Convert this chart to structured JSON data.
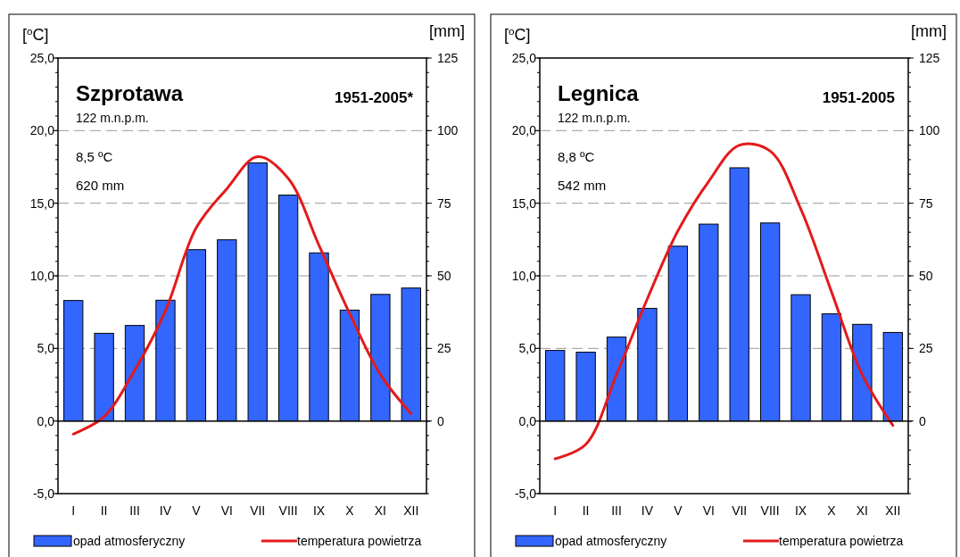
{
  "chart_data": [
    {
      "type": "bar",
      "title": "Szprotawa",
      "annotations": [
        "1951-2005*",
        "122 m.n.p.m.",
        "8,5 ºC",
        "620 mm"
      ],
      "ylabel": "[$^{o}$C]",
      "y2label": "[mm]",
      "categories": [
        "I",
        "II",
        "III",
        "IV",
        "V",
        "VI",
        "VII",
        "VIII",
        "IX",
        "X",
        "XI",
        "XII"
      ],
      "series": [
        {
          "name": "opad atmosferyczny",
          "axis": "y2",
          "color": "#3366ff",
          "values": [
            41.5,
            30.2,
            32.9,
            41.6,
            59.0,
            62.4,
            88.9,
            77.8,
            57.9,
            38.2,
            43.6,
            45.8
          ]
        },
        {
          "name": "temperatura powietrza",
          "type": "line",
          "axis": "y",
          "color": "#e31a1c",
          "values": [
            -0.9,
            0.3,
            3.5,
            7.6,
            13.3,
            16.0,
            18.2,
            16.7,
            12.1,
            7.4,
            3.2,
            0.5
          ]
        }
      ],
      "ylim": [
        -5,
        25
      ],
      "yticks": [
        {
          "value": -5,
          "label": "-5,0"
        },
        {
          "value": 0,
          "label": "0,0"
        },
        {
          "value": 5,
          "label": "5,0"
        },
        {
          "value": 10,
          "label": "10,0"
        },
        {
          "value": 15,
          "label": "15,0"
        },
        {
          "value": 20,
          "label": "20,0"
        },
        {
          "value": 25,
          "label": "25,0"
        }
      ],
      "y2lim": [
        -25,
        125
      ],
      "y2ticks": [
        0,
        25,
        50,
        75,
        100,
        125
      ],
      "grid": "y",
      "legend": "bottom",
      "marker": "none",
      "line_style": "solid"
    },
    {
      "type": "bar",
      "title": "Legnica",
      "annotations": [
        "1951-2005",
        "122 m.n.p.m.",
        "8,8 ºC",
        "542 mm"
      ],
      "ylabel": "[$^{o}$C]",
      "y2label": "[mm]",
      "categories": [
        "I",
        "II",
        "III",
        "IV",
        "V",
        "VI",
        "VII",
        "VIII",
        "IX",
        "X",
        "XI",
        "XII"
      ],
      "series": [
        {
          "name": "opad atmosferyczny",
          "axis": "y2",
          "color": "#3366ff",
          "values": [
            24.3,
            23.7,
            28.9,
            38.8,
            60.2,
            67.8,
            87.2,
            68.2,
            43.5,
            36.9,
            33.3,
            30.5
          ]
        },
        {
          "name": "temperatura powietrza",
          "type": "line",
          "axis": "y",
          "color": "#e31a1c",
          "values": [
            -2.6,
            -1.6,
            3.2,
            8.4,
            13.1,
            16.5,
            19.0,
            18.6,
            14.6,
            8.9,
            3.2,
            -0.3
          ]
        }
      ],
      "ylim": [
        -5,
        25
      ],
      "yticks": [
        {
          "value": -5,
          "label": "-5,0"
        },
        {
          "value": 0,
          "label": "0,0"
        },
        {
          "value": 5,
          "label": "5,0"
        },
        {
          "value": 10,
          "label": "10,0"
        },
        {
          "value": 15,
          "label": "15,0"
        },
        {
          "value": 20,
          "label": "20,0"
        },
        {
          "value": 25,
          "label": "25,0"
        }
      ],
      "y2lim": [
        -25,
        125
      ],
      "y2ticks": [
        0,
        25,
        50,
        75,
        100,
        125
      ],
      "grid": "y",
      "legend": "bottom",
      "marker": "none",
      "line_style": "solid"
    }
  ]
}
